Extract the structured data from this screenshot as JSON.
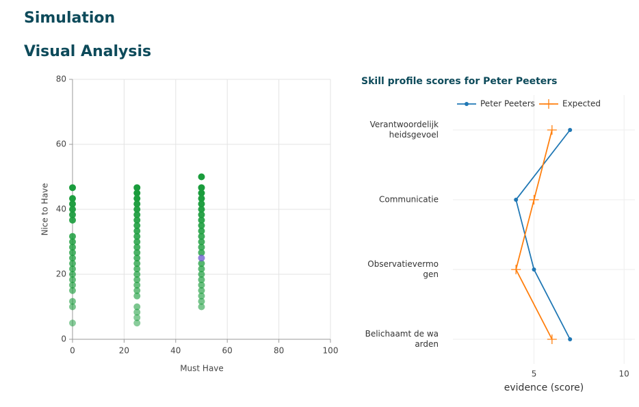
{
  "header": {
    "title": "Simulation",
    "subtitle": "Visual Analysis"
  },
  "chart_data": [
    {
      "type": "scatter",
      "xlabel": "Must Have",
      "ylabel": "Nice to Have",
      "xlim": [
        0,
        100
      ],
      "ylim": [
        0,
        80
      ],
      "xticks": [
        0,
        20,
        40,
        60,
        80,
        100
      ],
      "yticks": [
        0,
        20,
        40,
        60,
        80
      ],
      "grid": true,
      "series": [
        {
          "color": "#1a9c3c",
          "x": [
            0,
            0,
            0,
            0,
            0,
            0,
            0,
            0,
            0,
            0,
            0,
            0,
            0,
            0,
            0,
            0,
            0,
            0,
            0,
            0,
            25,
            25,
            25,
            25,
            25,
            25,
            25,
            25,
            25,
            25,
            25,
            25,
            25,
            25,
            25,
            25,
            25,
            25,
            25,
            25,
            25,
            25,
            25,
            25,
            25,
            50,
            50,
            50,
            50,
            50,
            50,
            50,
            50,
            50,
            50,
            50,
            50,
            50,
            50,
            50,
            50,
            50,
            50,
            50,
            50,
            50,
            50,
            50
          ],
          "values": [
            46.67,
            43.33,
            41.67,
            40,
            38.33,
            36.67,
            31.67,
            30,
            28.33,
            26.67,
            25,
            23.33,
            21.67,
            20,
            18.33,
            16.67,
            15,
            11.67,
            10,
            5,
            46.67,
            45,
            43.33,
            41.67,
            40,
            38.33,
            36.67,
            35,
            33.33,
            31.67,
            30,
            28.33,
            26.67,
            25,
            23.33,
            21.67,
            20,
            18.33,
            16.67,
            15,
            13.33,
            10,
            8.33,
            6.67,
            5,
            50,
            46.67,
            45,
            43.33,
            41.67,
            40,
            38.33,
            36.67,
            35,
            33.33,
            31.67,
            30,
            28.33,
            26.67,
            23.33,
            21.67,
            20,
            18.33,
            16.67,
            15,
            13.33,
            11.67,
            10
          ]
        },
        {
          "color": "#6a5acd",
          "x": [
            50
          ],
          "values": [
            25
          ]
        }
      ]
    },
    {
      "type": "line",
      "orientation": "horizontal",
      "title": "Skill profile scores for Peter Peeters",
      "xlabel": "evidence (score)",
      "categories": [
        "Verantwoordelijkheidsgevoel",
        "Communicatie",
        "Observatievermogen",
        "Belichaamt de waarden"
      ],
      "xlim": [
        0.5,
        10.6
      ],
      "xticks": [
        5,
        10
      ],
      "grid": true,
      "legend": "top",
      "series": [
        {
          "name": "Peter Peeters",
          "color": "#1f77b4",
          "marker": "circle",
          "values": [
            7,
            4,
            5,
            7
          ]
        },
        {
          "name": "Expected",
          "color": "#ff7f0e",
          "marker": "cross",
          "values": [
            6,
            5,
            4,
            6
          ]
        }
      ]
    }
  ]
}
